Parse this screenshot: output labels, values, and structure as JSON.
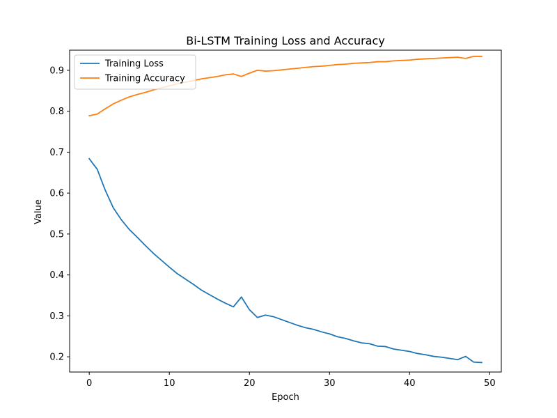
{
  "chart_data": {
    "type": "line",
    "title": "Bi-LSTM Training Loss and Accuracy",
    "xlabel": "Epoch",
    "ylabel": "Value",
    "x": [
      0,
      1,
      2,
      3,
      4,
      5,
      6,
      7,
      8,
      9,
      10,
      11,
      12,
      13,
      14,
      15,
      16,
      17,
      18,
      19,
      20,
      21,
      22,
      23,
      24,
      25,
      26,
      27,
      28,
      29,
      30,
      31,
      32,
      33,
      34,
      35,
      36,
      37,
      38,
      39,
      40,
      41,
      42,
      43,
      44,
      45,
      46,
      47,
      48,
      49
    ],
    "xlim": [
      -2.45,
      51.45
    ],
    "ylim": [
      0.1628,
      0.9492
    ],
    "xticks": [
      0,
      10,
      20,
      30,
      40,
      50
    ],
    "xtick_labels": [
      "0",
      "10",
      "20",
      "30",
      "40",
      "50"
    ],
    "yticks": [
      0.2,
      0.3,
      0.4,
      0.5,
      0.6,
      0.7,
      0.8,
      0.9
    ],
    "ytick_labels": [
      "0.2",
      "0.3",
      "0.4",
      "0.5",
      "0.6",
      "0.7",
      "0.8",
      "0.9"
    ],
    "grid": false,
    "legend_position": "top-left",
    "series": [
      {
        "name": "Training Loss",
        "color": "#1f77b4",
        "values": [
          0.684,
          0.658,
          0.607,
          0.564,
          0.535,
          0.511,
          0.492,
          0.472,
          0.453,
          0.436,
          0.419,
          0.403,
          0.39,
          0.377,
          0.363,
          0.352,
          0.341,
          0.331,
          0.322,
          0.346,
          0.315,
          0.296,
          0.302,
          0.298,
          0.291,
          0.284,
          0.277,
          0.271,
          0.267,
          0.261,
          0.256,
          0.249,
          0.245,
          0.239,
          0.234,
          0.232,
          0.226,
          0.225,
          0.219,
          0.216,
          0.213,
          0.208,
          0.205,
          0.201,
          0.199,
          0.196,
          0.193,
          0.201,
          0.187,
          0.186
        ]
      },
      {
        "name": "Training Accuracy",
        "color": "#ff7f0e",
        "values": [
          0.789,
          0.793,
          0.806,
          0.818,
          0.827,
          0.835,
          0.841,
          0.846,
          0.852,
          0.857,
          0.862,
          0.867,
          0.871,
          0.875,
          0.879,
          0.882,
          0.885,
          0.889,
          0.891,
          0.885,
          0.893,
          0.9,
          0.898,
          0.899,
          0.901,
          0.903,
          0.905,
          0.907,
          0.909,
          0.91,
          0.912,
          0.914,
          0.915,
          0.917,
          0.918,
          0.919,
          0.921,
          0.921,
          0.923,
          0.924,
          0.925,
          0.927,
          0.928,
          0.929,
          0.93,
          0.931,
          0.932,
          0.929,
          0.934,
          0.934
        ]
      }
    ]
  }
}
